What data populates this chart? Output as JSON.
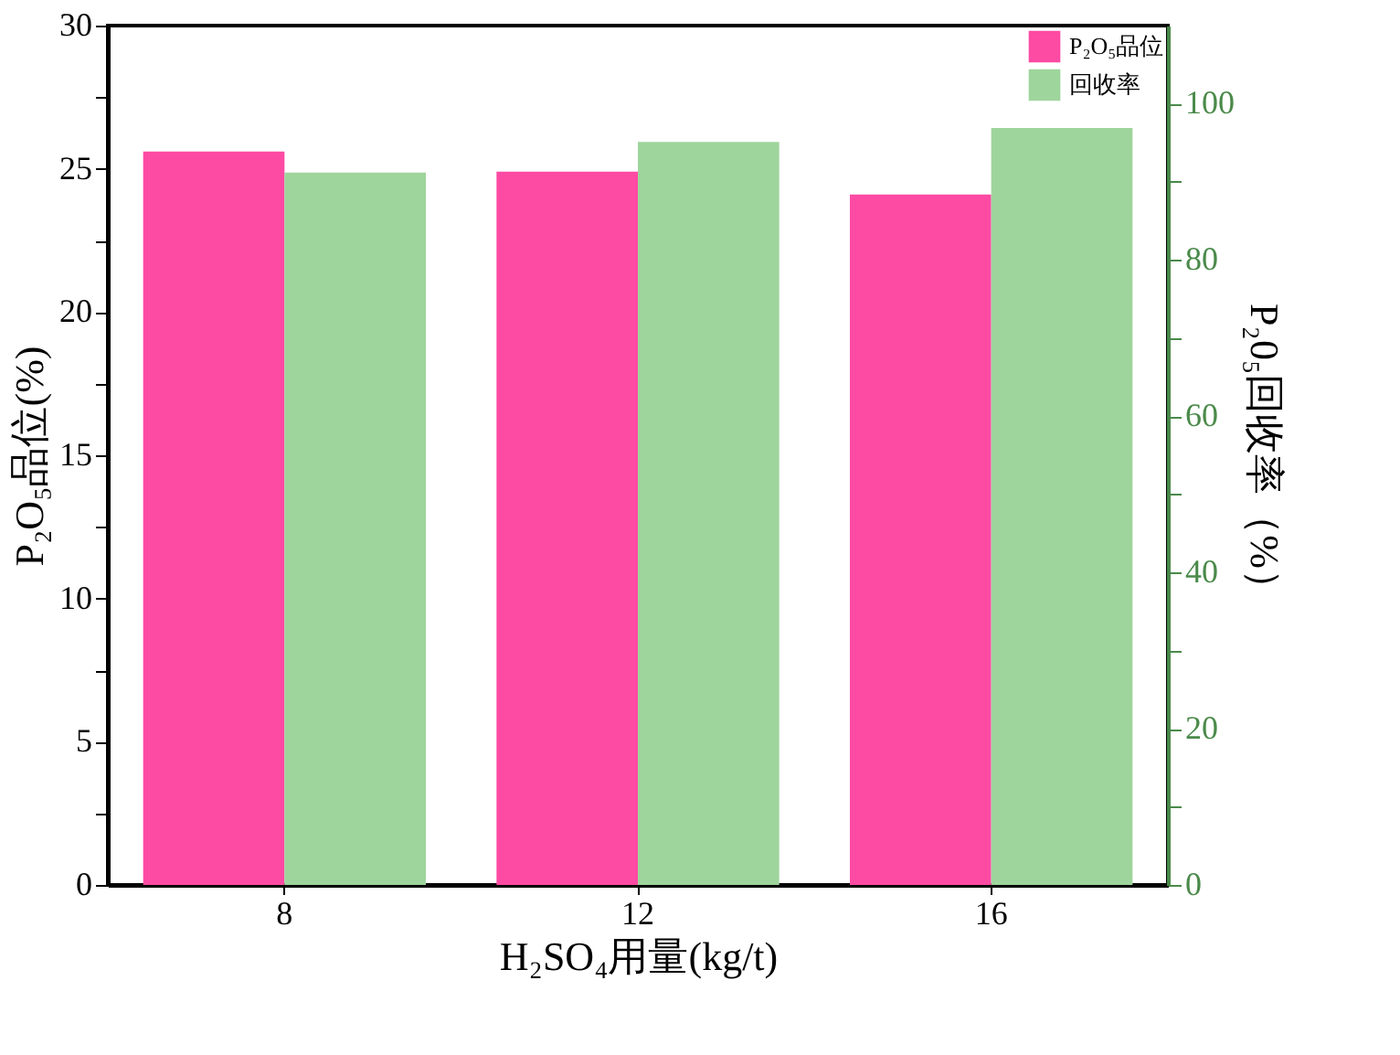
{
  "chart_data": {
    "type": "bar",
    "xlabel": "H₂SO₄用量(kg/t)",
    "ylabel": "P₂O₅品位(%)",
    "y2label": "P₂0₅回收率（%）",
    "categories": [
      "8",
      "12",
      "16"
    ],
    "series": [
      {
        "name": "P₂O₅品位",
        "color": "#fd4aa3",
        "values": [
          25.6,
          24.9,
          24.1
        ]
      },
      {
        "name": "回收率",
        "color": "#9ed59c",
        "values": [
          91.2,
          95.1,
          96.9
        ],
        "axis": "y2"
      }
    ],
    "ylim": [
      0,
      30
    ],
    "yticks": [
      0,
      {
        "value": 2.5,
        "label": null
      },
      5,
      {
        "value": 7.5,
        "label": null
      },
      10,
      {
        "value": 12.5,
        "label": null
      },
      15,
      {
        "value": 17.5,
        "label": null
      },
      20,
      {
        "value": 22.5,
        "label": null
      },
      25,
      {
        "value": 27.5,
        "label": null
      },
      30
    ],
    "y2lim": [
      0,
      110
    ],
    "y2ticks": [
      0,
      {
        "value": 10,
        "label": null
      },
      20,
      {
        "value": 30,
        "label": null
      },
      40,
      {
        "value": 50,
        "label": null
      },
      60,
      {
        "value": 70,
        "label": null
      },
      80,
      {
        "value": 90,
        "label": null
      },
      100
    ],
    "grid": false,
    "legend": "top right"
  }
}
